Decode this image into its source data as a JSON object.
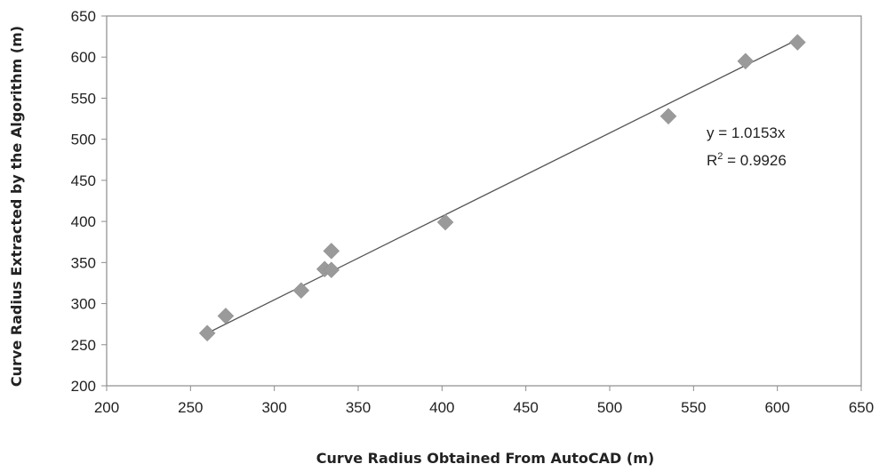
{
  "chart_data": {
    "type": "scatter",
    "xlabel": "Curve Radius Obtained From AutoCAD (m)",
    "ylabel": "Curve Radius Extracted by the Algorithm (m)",
    "xlim": [
      200,
      650
    ],
    "ylim": [
      200,
      650
    ],
    "xticks": [
      200,
      250,
      300,
      350,
      400,
      450,
      500,
      550,
      600,
      650
    ],
    "yticks": [
      200,
      250,
      300,
      350,
      400,
      450,
      500,
      550,
      600,
      650
    ],
    "grid": false,
    "marker": "diamond",
    "marker_color": "#9a9a9a",
    "line_color": "#555555",
    "series": [
      {
        "points": [
          {
            "x": 260,
            "y": 264
          },
          {
            "x": 271,
            "y": 285
          },
          {
            "x": 316,
            "y": 316
          },
          {
            "x": 330,
            "y": 342
          },
          {
            "x": 334,
            "y": 341
          },
          {
            "x": 334,
            "y": 364
          },
          {
            "x": 402,
            "y": 399
          },
          {
            "x": 535,
            "y": 528
          },
          {
            "x": 581,
            "y": 595
          },
          {
            "x": 612,
            "y": 618
          }
        ]
      }
    ],
    "trendline": {
      "slope": 1.0153,
      "x_range": [
        260,
        612
      ],
      "equation": "y = 1.0153x",
      "r2_prefix": "R",
      "r2_sup": "2",
      "r2_suffix": " = 0.9926"
    }
  }
}
